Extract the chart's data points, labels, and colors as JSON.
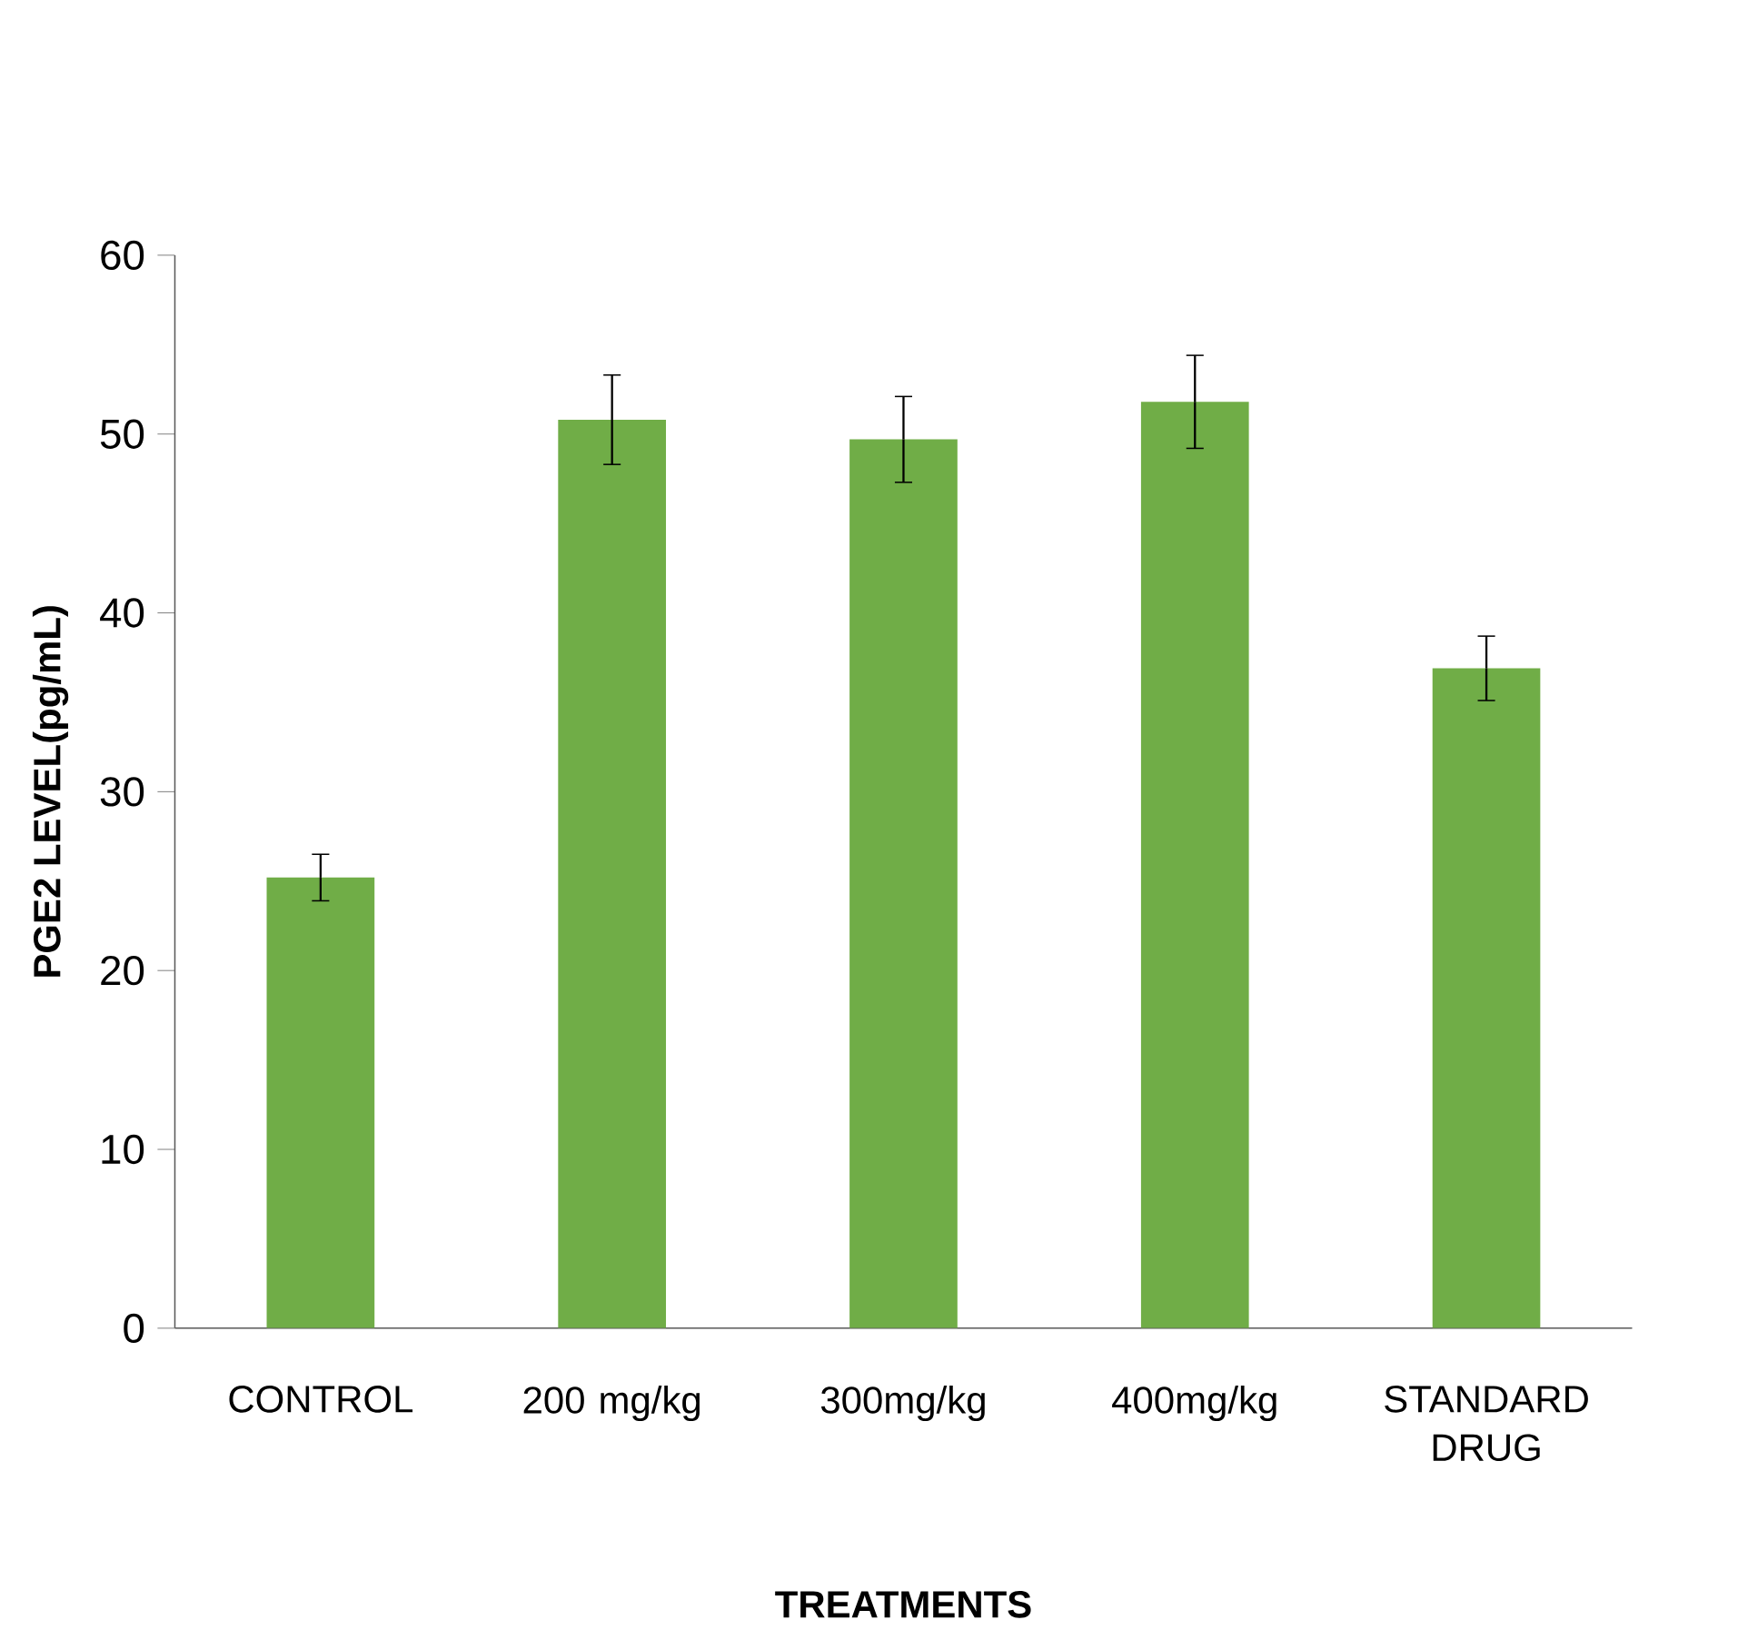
{
  "chart_data": {
    "type": "bar",
    "xlabel": "TREATMENTS",
    "ylabel": "PGE2 LEVEL(pg/mL)",
    "categories": [
      "CONTROL",
      "200 mg/kg",
      "300mg/kg",
      "400mg/kg",
      "STANDARD DRUG"
    ],
    "values": [
      25.2,
      50.8,
      49.7,
      51.8,
      36.9
    ],
    "errors": [
      1.3,
      2.5,
      2.4,
      2.6,
      1.8
    ],
    "color": "#70ad47",
    "ylim": [
      0,
      60
    ],
    "yticks": [
      0,
      10,
      20,
      30,
      40,
      50,
      60
    ]
  }
}
